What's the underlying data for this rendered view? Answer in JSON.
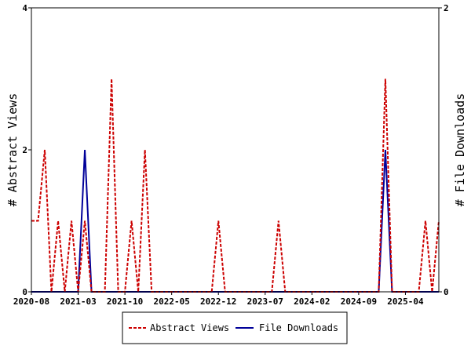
{
  "chart_data": {
    "type": "line",
    "title": "",
    "ylabel_left": "# Abstract Views",
    "ylabel_right": "# File Downloads",
    "xlim": [
      "2020-08",
      "2025-09"
    ],
    "ylim_left": [
      0,
      4
    ],
    "ylim_right": [
      0,
      2
    ],
    "yticks_left": [
      0,
      2,
      4
    ],
    "yticks_right": [
      0,
      2
    ],
    "xticks": [
      "2020-08",
      "2021-03",
      "2021-10",
      "2022-05",
      "2022-12",
      "2023-07",
      "2024-02",
      "2024-09",
      "2025-04"
    ],
    "legend_position": "bottom-center",
    "grid": false,
    "series": [
      {
        "name": "Abstract Views",
        "axis": "left",
        "color": "#cc0000",
        "style": "dashed",
        "x": [
          "2020-08",
          "2020-09",
          "2020-10",
          "2020-11",
          "2020-12",
          "2021-01",
          "2021-02",
          "2021-03",
          "2021-04",
          "2021-05",
          "2021-06",
          "2021-07",
          "2021-08",
          "2021-09",
          "2021-10",
          "2021-11",
          "2021-12",
          "2022-01",
          "2022-02",
          "2022-03",
          "2022-04",
          "2022-05",
          "2022-06",
          "2022-07",
          "2022-08",
          "2022-09",
          "2022-10",
          "2022-11",
          "2022-12",
          "2023-01",
          "2023-02",
          "2023-03",
          "2023-04",
          "2023-05",
          "2023-06",
          "2023-07",
          "2023-08",
          "2023-09",
          "2023-10",
          "2023-11",
          "2023-12",
          "2024-01",
          "2024-02",
          "2024-03",
          "2024-04",
          "2024-05",
          "2024-06",
          "2024-07",
          "2024-08",
          "2024-09",
          "2024-10",
          "2024-11",
          "2024-12",
          "2025-01",
          "2025-02",
          "2025-03",
          "2025-04",
          "2025-05",
          "2025-06",
          "2025-07",
          "2025-08",
          "2025-09"
        ],
        "y": [
          1,
          1,
          2,
          0,
          1,
          0,
          1,
          0,
          1,
          0,
          0,
          0,
          3,
          0,
          0,
          1,
          0,
          2,
          0,
          0,
          0,
          0,
          0,
          0,
          0,
          0,
          0,
          0,
          1,
          0,
          0,
          0,
          0,
          0,
          0,
          0,
          0,
          1,
          0,
          0,
          0,
          0,
          0,
          0,
          0,
          0,
          0,
          0,
          0,
          0,
          0,
          0,
          0,
          3,
          0,
          0,
          0,
          0,
          0,
          1,
          0,
          1
        ]
      },
      {
        "name": "File Downloads",
        "axis": "right",
        "color": "#000099",
        "style": "solid",
        "x": [
          "2020-08",
          "2020-09",
          "2020-10",
          "2020-11",
          "2020-12",
          "2021-01",
          "2021-02",
          "2021-03",
          "2021-04",
          "2021-05",
          "2021-06",
          "2021-07",
          "2021-08",
          "2021-09",
          "2021-10",
          "2021-11",
          "2021-12",
          "2022-01",
          "2022-02",
          "2022-03",
          "2022-04",
          "2022-05",
          "2022-06",
          "2022-07",
          "2022-08",
          "2022-09",
          "2022-10",
          "2022-11",
          "2022-12",
          "2023-01",
          "2023-02",
          "2023-03",
          "2023-04",
          "2023-05",
          "2023-06",
          "2023-07",
          "2023-08",
          "2023-09",
          "2023-10",
          "2023-11",
          "2023-12",
          "2024-01",
          "2024-02",
          "2024-03",
          "2024-04",
          "2024-05",
          "2024-06",
          "2024-07",
          "2024-08",
          "2024-09",
          "2024-10",
          "2024-11",
          "2024-12",
          "2025-01",
          "2025-02",
          "2025-03",
          "2025-04",
          "2025-05",
          "2025-06",
          "2025-07",
          "2025-08",
          "2025-09"
        ],
        "y": [
          0,
          0,
          0,
          0,
          0,
          0,
          0,
          0,
          1,
          0,
          0,
          0,
          0,
          0,
          0,
          0,
          0,
          0,
          0,
          0,
          0,
          0,
          0,
          0,
          0,
          0,
          0,
          0,
          0,
          0,
          0,
          0,
          0,
          0,
          0,
          0,
          0,
          0,
          0,
          0,
          0,
          0,
          0,
          0,
          0,
          0,
          0,
          0,
          0,
          0,
          0,
          0,
          0,
          1,
          0,
          0,
          0,
          0,
          0,
          0,
          0,
          0
        ]
      }
    ]
  }
}
